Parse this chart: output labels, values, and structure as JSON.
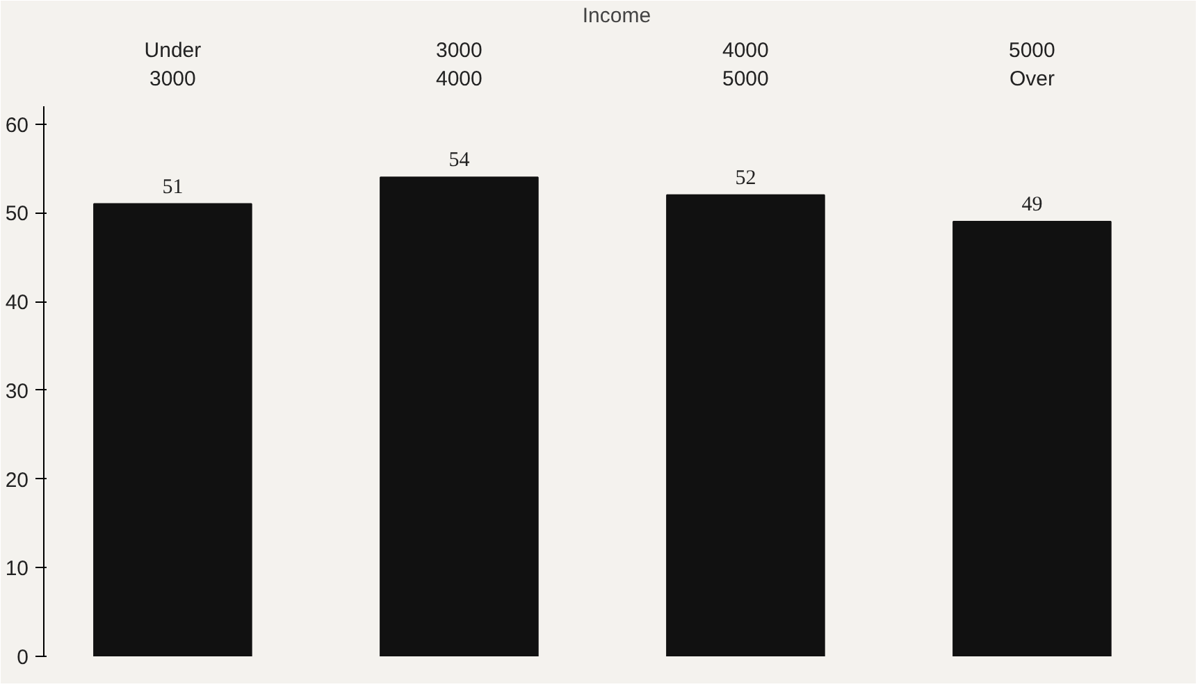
{
  "chart_data": {
    "type": "bar",
    "xlabel": "Income",
    "categories": [
      "Under 3000",
      "3000 4000",
      "4000 5000",
      "5000 Over"
    ],
    "values": [
      51,
      54,
      52,
      49
    ],
    "color": "#111111",
    "ylim": [
      0,
      62
    ],
    "yticks": [
      0,
      10,
      20,
      30,
      40,
      50,
      60
    ],
    "grid": false,
    "data_labels": true
  }
}
